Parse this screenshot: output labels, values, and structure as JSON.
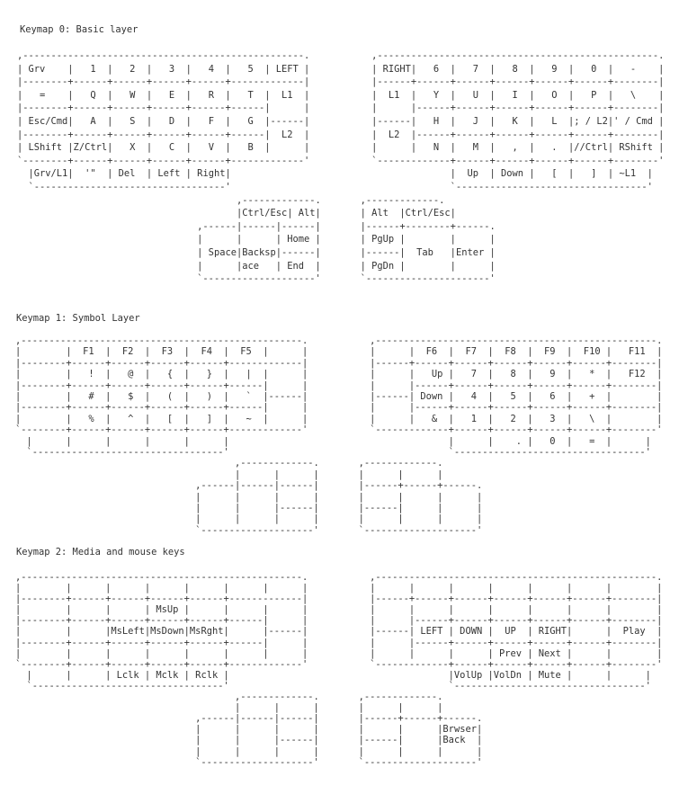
{
  "layers": [
    {
      "title": "Keymap 0: Basic layer",
      "left": [
        ",--------------------------------------------------.",
        "| Grv    |   1  |   2  |   3  |   4  |   5  | LEFT |",
        "|--------+------+------+------+------+-------------|",
        "|   =    |   Q  |   W  |   E  |   R  |   T  |  L1  |",
        "|--------+------+------+------+------+------|      |",
        "| Esc/Cmd|   A  |   S  |   D  |   F  |   G  |------|",
        "|--------+------+------+------+------+------|  L2  |",
        "| LShift |Z/Ctrl|   X  |   C  |   V  |   B  |      |",
        "`--------+------+------+------+------+-------------'",
        "  |Grv/L1|  '\"  | Del  | Left | Right|",
        "  `----------------------------------'"
      ],
      "right": [
        ",--------------------------------------------------.",
        "| RIGHT|   6  |   7  |   8  |   9  |   0  |   -    |",
        "|------+------+------+------+------+------+--------|",
        "|  L1  |   Y  |   U  |   I  |   O  |   P  |   \\    |",
        "|      |------+------+------+------+------+--------|",
        "|------|   H  |   J  |   K  |   L  |; / L2|' / Cmd |",
        "|  L2  |------+------+------+------+------+--------|",
        "|      |   N  |   M  |   ,  |   .  |//Ctrl| RShift |",
        "`-------------+------+------+------+------+--------'",
        "              |  Up  | Down |   [  |   ]  | ~L1  |",
        "              `----------------------------------'"
      ],
      "thumb_left": [
        "       ,-------------.",
        "       |Ctrl/Esc| Alt|",
        ",------|------|------|",
        "|      |      | Home |",
        "| Space|Backsp|------|",
        "|      |ace   | End  |",
        "`--------------------'"
      ],
      "thumb_right": [
        ",-------------.",
        "| Alt  |Ctrl/Esc|",
        "|------+--------+------.",
        "| PgUp |        |      |",
        "|------|  Tab   |Enter |",
        "| PgDn |        |      |",
        "`----------------------'"
      ]
    },
    {
      "title": "Keymap 1: Symbol Layer",
      "left": [
        ",--------------------------------------------------.",
        "|        |  F1  |  F2  |  F3  |  F4  |  F5  |      |",
        "|--------+------+------+------+------+-------------|",
        "|        |   !  |   @  |   {  |   }  |   |  |      |",
        "|--------+------+------+------+------+------|      |",
        "|        |   #  |   $  |   (  |   )  |   `  |------|",
        "|--------+------+------+------+------+------|      |",
        "|        |   %  |   ^  |   [  |   ]  |   ~  |      |",
        "`--------+------+------+------+------+-------------'",
        "  |      |      |      |      |      |",
        "  `----------------------------------'"
      ],
      "right": [
        ",--------------------------------------------------.",
        "|      |  F6  |  F7  |  F8  |  F9  |  F10 |   F11  |",
        "|------+------+------+------+------+------+--------|",
        "|      |   Up |   7  |   8  |   9  |   *  |   F12  |",
        "|      |------+------+------+------+------+--------|",
        "|------| Down |   4  |   5  |   6  |   +  |        |",
        "|      |------+------+------+------+------+--------|",
        "|      |   &  |   1  |   2  |   3  |   \\  |        |",
        "`-------------+------+------+------+------+--------'",
        "              |      |    . |   0  |   =  |      |",
        "              `----------------------------------'"
      ],
      "thumb_left": [
        "       ,-------------.",
        "       |      |      |",
        ",------|------|------|",
        "|      |      |      |",
        "|      |      |------|",
        "|      |      |      |",
        "`--------------------'"
      ],
      "thumb_right": [
        ",-------------.",
        "|      |      |",
        "|------+------+------.",
        "|      |      |      |",
        "|------|      |      |",
        "|      |      |      |",
        "`--------------------'"
      ]
    },
    {
      "title": "Keymap 2: Media and mouse keys",
      "left": [
        ",--------------------------------------------------.",
        "|        |      |      |      |      |      |      |",
        "|--------+------+------+------+------+-------------|",
        "|        |      |      | MsUp |      |      |      |",
        "|--------+------+------+------+------+------|      |",
        "|        |      |MsLeft|MsDown|MsRght|      |------|",
        "|--------+------+------+------+------+------|      |",
        "|        |      |      |      |      |      |      |",
        "`--------+------+------+------+------+-------------'",
        "  |      |      | Lclk | Mclk | Rclk |",
        "  `----------------------------------'"
      ],
      "right": [
        ",--------------------------------------------------.",
        "|      |      |      |      |      |      |        |",
        "|------+------+------+------+------+------+--------|",
        "|      |      |      |      |      |      |        |",
        "|      |------+------+------+------+------+--------|",
        "|------| LEFT | DOWN |  UP  | RIGHT|      |  Play  |",
        "|      |------+------+------+------+------+--------|",
        "|      |      |      | Prev | Next |      |        |",
        "`-------------+------+------+------+------+--------'",
        "              |VolUp |VolDn | Mute |      |      |",
        "              `----------------------------------'"
      ],
      "thumb_left": [
        "       ,-------------.",
        "       |      |      |",
        ",------|------|------|",
        "|      |      |      |",
        "|      |      |------|",
        "|      |      |      |",
        "`--------------------'"
      ],
      "thumb_right": [
        ",-------------.",
        "|      |      |",
        "|------+------+------.",
        "|      |      |Brwser|",
        "|------|      |Back  |",
        "|      |      |      |",
        "`--------------------'"
      ]
    }
  ]
}
